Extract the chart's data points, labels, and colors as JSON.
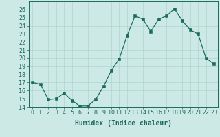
{
  "x": [
    0,
    1,
    2,
    3,
    4,
    5,
    6,
    7,
    8,
    9,
    10,
    11,
    12,
    13,
    14,
    15,
    16,
    17,
    18,
    19,
    20,
    21,
    22,
    23
  ],
  "y": [
    17.0,
    16.8,
    14.9,
    15.0,
    15.7,
    14.8,
    14.1,
    14.1,
    14.9,
    16.5,
    18.5,
    19.9,
    22.8,
    25.2,
    24.8,
    23.3,
    24.8,
    25.2,
    26.1,
    24.6,
    23.5,
    23.0,
    20.0,
    19.3
  ],
  "xlabel": "Humidex (Indice chaleur)",
  "ylim": [
    14,
    27
  ],
  "xlim": [
    -0.5,
    23.5
  ],
  "yticks": [
    14,
    15,
    16,
    17,
    18,
    19,
    20,
    21,
    22,
    23,
    24,
    25,
    26
  ],
  "xtick_labels": [
    "0",
    "1",
    "2",
    "3",
    "4",
    "5",
    "6",
    "7",
    "8",
    "9",
    "10",
    "11",
    "12",
    "13",
    "14",
    "15",
    "16",
    "17",
    "18",
    "19",
    "20",
    "21",
    "22",
    "23"
  ],
  "line_color": "#1a6b5a",
  "marker": "s",
  "marker_size": 2.5,
  "bg_color": "#cce9e5",
  "grid_color": "#afd4cf",
  "axis_fontsize": 7,
  "tick_fontsize": 6
}
